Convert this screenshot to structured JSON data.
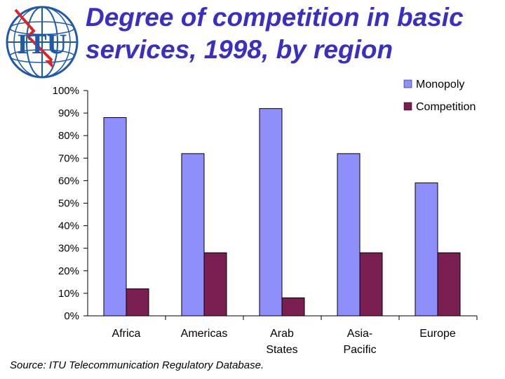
{
  "title_line1": "Degree of competition in basic",
  "title_line2": "services, 1998, by region",
  "logo_text": "ITU",
  "source": "Source: ITU Telecommunication Regulatory Database.",
  "colors": {
    "title": "#3a2fc2",
    "monopoly": "#8f8ffc",
    "competition": "#7b1f52"
  },
  "chart_data": {
    "type": "bar",
    "categories": [
      [
        "Africa"
      ],
      [
        "Americas"
      ],
      [
        "Arab",
        "States"
      ],
      [
        "Asia-",
        "Pacific"
      ],
      [
        "Europe"
      ]
    ],
    "series": [
      {
        "name": "Monopoly",
        "values": [
          88,
          72,
          92,
          72,
          59
        ],
        "color": "#8f8ffc"
      },
      {
        "name": "Competition",
        "values": [
          12,
          28,
          8,
          28,
          28
        ],
        "color": "#7b1f52"
      }
    ],
    "yticks": [
      "0%",
      "10%",
      "20%",
      "30%",
      "40%",
      "50%",
      "60%",
      "70%",
      "80%",
      "90%",
      "100%"
    ],
    "ylim": [
      0,
      100
    ],
    "legend_position": "top-right",
    "grid": false
  }
}
